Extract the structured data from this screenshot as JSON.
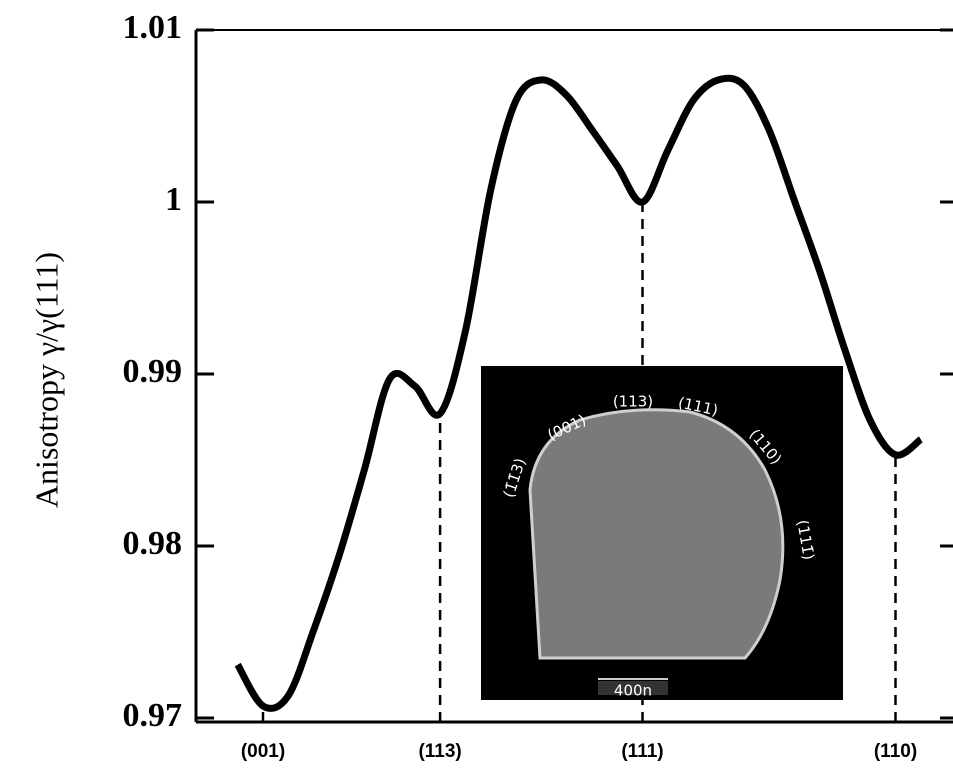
{
  "chart_data": {
    "type": "line",
    "y_label": "Anisotropy γ/γ(111)",
    "categories": [
      null,
      "(001)",
      null,
      null,
      null,
      null,
      null,
      null,
      "(113)",
      null,
      null,
      null,
      null,
      null,
      null,
      null,
      "(111)",
      null,
      null,
      null,
      null,
      null,
      null,
      null,
      null,
      null,
      "(110)",
      null
    ],
    "series": [
      {
        "color": "#000000",
        "values": [
          0.9731,
          0.9707,
          0.9713,
          0.9751,
          0.9794,
          0.9844,
          0.9897,
          0.9893,
          0.9877,
          0.9925,
          1.0007,
          1.0059,
          1.0071,
          1.0062,
          1.0042,
          1.0021,
          1.0,
          1.003,
          1.0059,
          1.0071,
          1.0068,
          1.0042,
          1.0001,
          0.996,
          0.9914,
          0.9873,
          0.9853,
          0.9862
        ]
      }
    ],
    "ylim": [
      0.97,
      1.01
    ],
    "yticks": [
      0.97,
      0.98,
      0.99,
      1,
      1.01
    ],
    "inset_labels": [
      "(1̄1̄3)",
      "(001)",
      "(113)",
      "(111)",
      "(110)",
      "(111̄)",
      "400n"
    ]
  }
}
